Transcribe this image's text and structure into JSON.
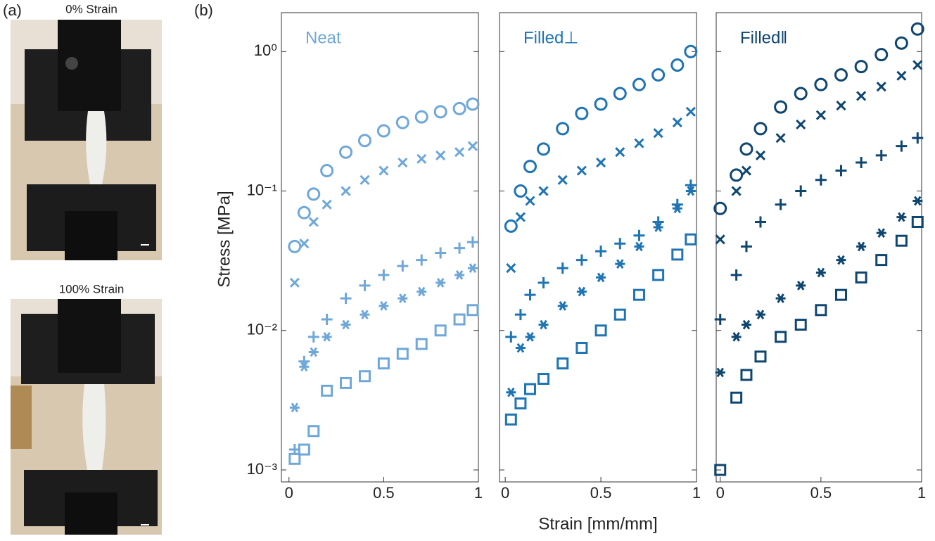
{
  "figure": {
    "panel_a": "(a)",
    "panel_b": "(b)",
    "photo_captions": [
      "0% Strain",
      "100% Strain"
    ]
  },
  "chart_data": [
    {
      "type": "scatter",
      "title": "Neat",
      "color": "#6fa8d8",
      "ylabel": "Stress [MPa]",
      "log_y": true,
      "show_ytick_labels": true,
      "xlim": [
        -0.04,
        1
      ],
      "xticks": [
        0,
        0.5,
        1
      ],
      "ylim": [
        0.001,
        1.9
      ],
      "yticks": [
        {
          "value": 0.001,
          "label": "10⁻³"
        },
        {
          "value": 0.01,
          "label": "10⁻²"
        },
        {
          "value": 0.1,
          "label": "10⁻¹"
        },
        {
          "value": 1,
          "label": "10⁰"
        }
      ],
      "x": [
        0.03,
        0.08,
        0.13,
        0.2,
        0.3,
        0.4,
        0.5,
        0.6,
        0.7,
        0.8,
        0.9,
        0.97
      ],
      "series": [
        {
          "marker": "circle",
          "values": [
            0.04,
            0.07,
            0.095,
            0.14,
            0.19,
            0.23,
            0.27,
            0.31,
            0.34,
            0.37,
            0.39,
            0.42
          ]
        },
        {
          "marker": "cross",
          "values": [
            0.022,
            0.042,
            0.06,
            0.08,
            0.1,
            0.12,
            0.14,
            0.16,
            0.17,
            0.18,
            0.19,
            0.21
          ]
        },
        {
          "marker": "plus",
          "values": [
            0.0014,
            0.006,
            0.009,
            0.012,
            0.017,
            0.021,
            0.025,
            0.029,
            0.032,
            0.036,
            0.039,
            0.043
          ]
        },
        {
          "marker": "asterisk",
          "values": [
            0.0028,
            0.0055,
            0.007,
            0.009,
            0.011,
            0.013,
            0.015,
            0.017,
            0.019,
            0.022,
            0.025,
            0.028
          ]
        },
        {
          "marker": "square",
          "values": [
            0.0012,
            0.0014,
            0.0019,
            0.0037,
            0.0042,
            0.0047,
            0.0058,
            0.0068,
            0.008,
            0.01,
            0.012,
            0.014
          ]
        }
      ]
    },
    {
      "type": "scatter",
      "title": "Filled⊥",
      "color": "#1f74b4",
      "xlabel": "Strain [mm/mm]",
      "log_y": true,
      "show_ytick_labels": false,
      "xlim": [
        -0.03,
        1
      ],
      "xticks": [
        0,
        0.5,
        1
      ],
      "ylim": [
        0.001,
        1.9
      ],
      "yticks": [
        0.001,
        0.01,
        0.1,
        1
      ],
      "x": [
        0.03,
        0.08,
        0.13,
        0.2,
        0.3,
        0.4,
        0.5,
        0.6,
        0.7,
        0.8,
        0.9,
        0.97
      ],
      "series": [
        {
          "marker": "circle",
          "values": [
            0.056,
            0.1,
            0.15,
            0.2,
            0.28,
            0.36,
            0.42,
            0.5,
            0.58,
            0.68,
            0.8,
            1.0
          ]
        },
        {
          "marker": "cross",
          "values": [
            0.028,
            0.065,
            0.085,
            0.1,
            0.12,
            0.14,
            0.16,
            0.19,
            0.22,
            0.26,
            0.31,
            0.37
          ]
        },
        {
          "marker": "plus",
          "values": [
            0.009,
            0.013,
            0.018,
            0.022,
            0.028,
            0.032,
            0.037,
            0.042,
            0.048,
            0.06,
            0.08,
            0.11
          ]
        },
        {
          "marker": "asterisk",
          "values": [
            0.0036,
            0.0075,
            0.009,
            0.011,
            0.015,
            0.019,
            0.024,
            0.03,
            0.04,
            0.055,
            0.075,
            0.1
          ]
        },
        {
          "marker": "square",
          "values": [
            0.0023,
            0.003,
            0.0038,
            0.0045,
            0.0058,
            0.0075,
            0.01,
            0.013,
            0.018,
            0.025,
            0.035,
            0.045
          ]
        }
      ]
    },
    {
      "type": "scatter",
      "title": "Filled‖",
      "color": "#0f4670",
      "log_y": true,
      "show_ytick_labels": false,
      "xlim": [
        -0.02,
        1
      ],
      "xticks": [
        0,
        0.5,
        1
      ],
      "ylim": [
        0.001,
        1.9
      ],
      "yticks": [
        0.001,
        0.01,
        0.1,
        1
      ],
      "x": [
        0,
        0.08,
        0.13,
        0.2,
        0.3,
        0.4,
        0.5,
        0.6,
        0.7,
        0.8,
        0.9,
        0.98
      ],
      "series": [
        {
          "marker": "circle",
          "values": [
            0.075,
            0.13,
            0.2,
            0.28,
            0.4,
            0.5,
            0.58,
            0.68,
            0.78,
            0.95,
            1.15,
            1.45
          ]
        },
        {
          "marker": "cross",
          "values": [
            0.045,
            0.1,
            0.14,
            0.18,
            0.24,
            0.3,
            0.35,
            0.41,
            0.48,
            0.56,
            0.67,
            0.8
          ]
        },
        {
          "marker": "plus",
          "values": [
            0.012,
            0.025,
            0.04,
            0.06,
            0.08,
            0.1,
            0.12,
            0.14,
            0.16,
            0.18,
            0.21,
            0.24
          ]
        },
        {
          "marker": "asterisk",
          "values": [
            0.005,
            0.009,
            0.011,
            0.013,
            0.017,
            0.021,
            0.026,
            0.032,
            0.04,
            0.05,
            0.065,
            0.085
          ]
        },
        {
          "marker": "square",
          "values": [
            0.001,
            0.0033,
            0.0048,
            0.0065,
            0.009,
            0.011,
            0.014,
            0.018,
            0.024,
            0.032,
            0.044,
            0.06
          ]
        }
      ]
    }
  ]
}
